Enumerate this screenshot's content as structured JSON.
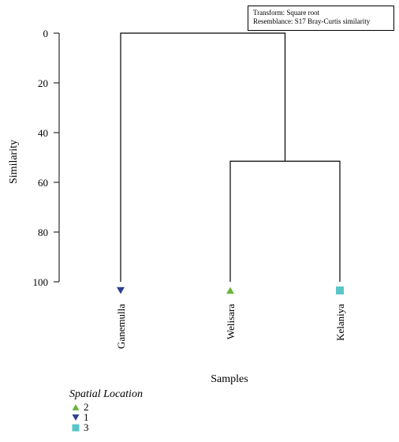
{
  "chart_data": {
    "type": "dendrogram",
    "info": {
      "transform": "Transform: Square root",
      "resemblance": "Resemblance: S17 Bray-Curtis similarity"
    },
    "xlabel": "Samples",
    "ylabel": "Similarity",
    "ylim": [
      0,
      100
    ],
    "y_ticks": [
      0,
      20,
      40,
      60,
      80,
      100
    ],
    "leaves": [
      {
        "label": "Ganemulla",
        "group": "1"
      },
      {
        "label": "Welisara",
        "group": "2"
      },
      {
        "label": "Kelaniya",
        "group": "3"
      }
    ],
    "merges": [
      {
        "left": "Welisara",
        "right": "Kelaniya",
        "similarity": 51.5
      },
      {
        "left": "Ganemulla",
        "right": "Welisara+Kelaniya",
        "similarity": 0
      }
    ],
    "legend": {
      "title": "Spatial Location",
      "placement": "bottom-left",
      "entries": [
        {
          "label": "2",
          "shape": "triangle-up",
          "color": "#6ab43e"
        },
        {
          "label": "1",
          "shape": "triangle-down",
          "color": "#2e3f8f"
        },
        {
          "label": "3",
          "shape": "square",
          "color": "#5bc5c8"
        }
      ]
    },
    "colors": {
      "group_1": "#2e3f8f",
      "group_2": "#6ab43e",
      "group_3": "#5bc5c8",
      "lines": "#000000"
    }
  }
}
